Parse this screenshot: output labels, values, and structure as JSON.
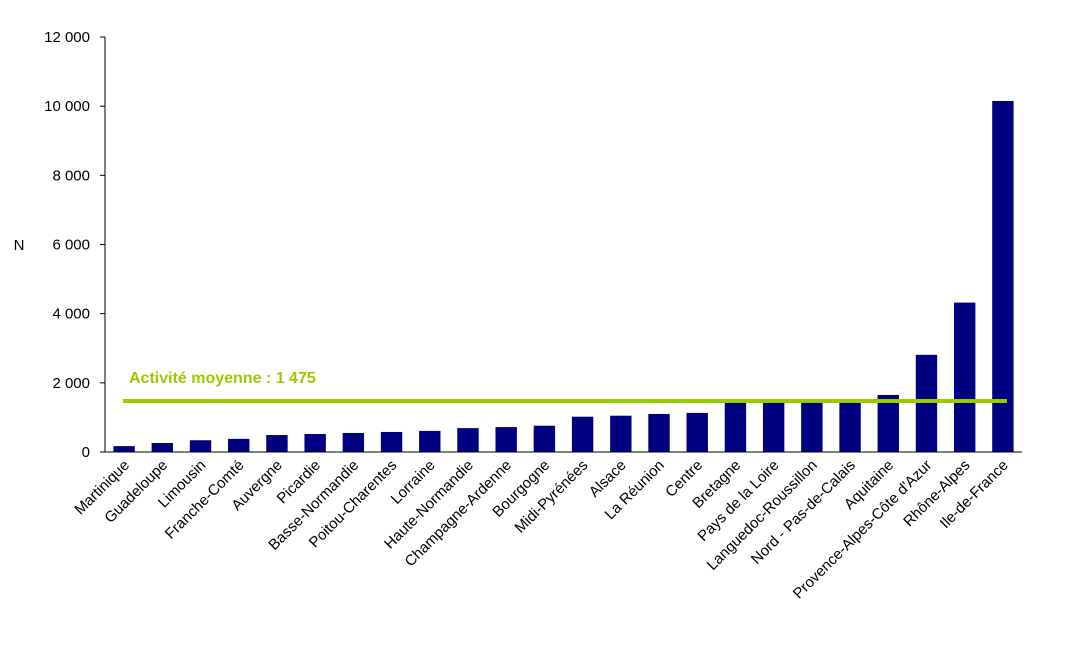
{
  "chart_data": {
    "type": "bar",
    "ylabel": "N",
    "xlabel": "",
    "ylim": [
      0,
      12000
    ],
    "yticks": [
      0,
      2000,
      4000,
      6000,
      8000,
      10000,
      12000
    ],
    "ytick_labels": [
      "0",
      "2 000",
      "4 000",
      "6 000",
      "8 000",
      "10 000",
      "12 000"
    ],
    "grid": false,
    "categories": [
      "Martinique",
      "Guadeloupe",
      "Limousin",
      "Franche-Comté",
      "Auvergne",
      "Picardie",
      "Basse-Normandie",
      "Poitou-Charentes",
      "Lorraine",
      "Haute-Normandie",
      "Champagne-Ardenne",
      "Bourgogne",
      "Midi-Pyrénées",
      "Alsace",
      "La Réunion",
      "Centre",
      "Bretagne",
      "Pays de la Loire",
      "Languedoc-Roussillon",
      "Nord - Pas-de-Calais",
      "Aquitaine",
      "Provence-Alpes-Côte d'Azur",
      "Rhône-Alpes",
      "Ile-de-France"
    ],
    "values": [
      170,
      260,
      340,
      380,
      490,
      520,
      550,
      580,
      610,
      690,
      720,
      760,
      1020,
      1050,
      1100,
      1130,
      1470,
      1480,
      1490,
      1500,
      1650,
      2810,
      4320,
      10150
    ],
    "reference_line": {
      "value": 1475,
      "label": "Activité moyenne : 1 475"
    },
    "colors": {
      "bar": "#000080",
      "reference_line": "#99cc00",
      "axis": "#000000"
    }
  }
}
